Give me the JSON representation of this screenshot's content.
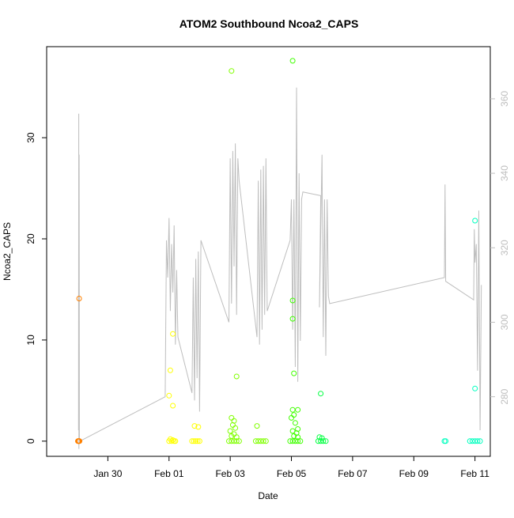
{
  "chart_data": {
    "type": "scatter",
    "title": "ATOM2 Southbound Ncoa2_CAPS",
    "xlabel": "Date",
    "ylabel": "Ncoa2_CAPS",
    "right_axis_label": "",
    "grid": false,
    "legend": "none",
    "xlim": [
      "2018-01-28T00:00",
      "2018-02-11T12:00"
    ],
    "ylim": [
      -1.5,
      39.0
    ],
    "y2lim": [
      264.0,
      374.0
    ],
    "x_ticks": [
      {
        "label": "Jan 30",
        "date": "2018-01-30"
      },
      {
        "label": "Feb 01",
        "date": "2018-02-01"
      },
      {
        "label": "Feb 03",
        "date": "2018-02-03"
      },
      {
        "label": "Feb 05",
        "date": "2018-02-05"
      },
      {
        "label": "Feb 07",
        "date": "2018-02-07"
      },
      {
        "label": "Feb 09",
        "date": "2018-02-09"
      },
      {
        "label": "Feb 11",
        "date": "2018-02-11"
      }
    ],
    "y_ticks": [
      0,
      10,
      20,
      30
    ],
    "y2_ticks": [
      280,
      300,
      320,
      340,
      360
    ],
    "colors": {
      "line": "#bebebe",
      "right_axis": "#bebebe",
      "axis": "#000000",
      "point_scale": [
        "#ff8000",
        "#ffff00",
        "#80ff00",
        "#00ff40",
        "#00ffbf"
      ]
    },
    "line_series": [
      [
        "2018-01-29T01:00",
        271
      ],
      [
        "2018-01-29T01:10",
        356
      ],
      [
        "2018-01-29T01:20",
        266
      ],
      [
        "2018-01-29T01:30",
        345
      ],
      [
        "2018-01-29T01:40",
        268
      ],
      [
        "2018-01-31T21:00",
        280
      ],
      [
        "2018-01-31T22:00",
        322
      ],
      [
        "2018-01-31T23:00",
        312
      ],
      [
        "2018-02-01T00:00",
        328
      ],
      [
        "2018-02-01T01:00",
        303
      ],
      [
        "2018-02-01T02:00",
        321
      ],
      [
        "2018-02-01T03:00",
        308
      ],
      [
        "2018-02-01T04:00",
        326
      ],
      [
        "2018-02-01T05:00",
        294
      ],
      [
        "2018-02-01T06:00",
        314
      ],
      [
        "2018-02-01T07:00",
        296
      ],
      [
        "2018-02-01T18:00",
        281
      ],
      [
        "2018-02-01T19:00",
        312
      ],
      [
        "2018-02-01T20:00",
        279
      ],
      [
        "2018-02-01T21:00",
        317
      ],
      [
        "2018-02-01T22:00",
        285
      ],
      [
        "2018-02-01T23:00",
        319
      ],
      [
        "2018-02-02T00:00",
        276
      ],
      [
        "2018-02-02T01:00",
        322
      ],
      [
        "2018-02-02T02:00",
        321
      ],
      [
        "2018-02-02T23:00",
        300
      ],
      [
        "2018-02-03T00:00",
        344
      ],
      [
        "2018-02-03T01:00",
        305
      ],
      [
        "2018-02-03T02:00",
        346
      ],
      [
        "2018-02-03T03:00",
        315
      ],
      [
        "2018-02-03T04:00",
        348
      ],
      [
        "2018-02-03T05:00",
        302
      ],
      [
        "2018-02-03T06:00",
        344
      ],
      [
        "2018-02-03T07:00",
        338
      ],
      [
        "2018-02-03T21:00",
        296
      ],
      [
        "2018-02-03T22:00",
        338
      ],
      [
        "2018-02-03T23:00",
        294
      ],
      [
        "2018-02-04T00:00",
        341
      ],
      [
        "2018-02-04T01:00",
        298
      ],
      [
        "2018-02-04T02:00",
        342
      ],
      [
        "2018-02-04T03:00",
        302
      ],
      [
        "2018-02-04T04:00",
        344
      ],
      [
        "2018-02-04T05:00",
        303
      ],
      [
        "2018-02-04T23:00",
        322
      ],
      [
        "2018-02-05T00:00",
        333
      ],
      [
        "2018-02-05T01:00",
        298
      ],
      [
        "2018-02-05T02:00",
        333
      ],
      [
        "2018-02-05T03:00",
        288
      ],
      [
        "2018-02-05T04:00",
        363
      ],
      [
        "2018-02-05T05:00",
        284
      ],
      [
        "2018-02-05T06:00",
        340
      ],
      [
        "2018-02-05T07:00",
        295
      ],
      [
        "2018-02-05T08:00",
        333
      ],
      [
        "2018-02-05T09:00",
        335
      ],
      [
        "2018-02-05T23:00",
        334
      ],
      [
        "2018-02-05T22:00",
        304
      ],
      [
        "2018-02-06T00:00",
        345
      ],
      [
        "2018-02-06T01:00",
        296
      ],
      [
        "2018-02-06T02:00",
        333
      ],
      [
        "2018-02-06T03:00",
        291
      ],
      [
        "2018-02-06T04:00",
        333
      ],
      [
        "2018-02-06T05:00",
        307
      ],
      [
        "2018-02-06T06:00",
        305
      ],
      [
        "2018-02-10T00:00",
        312
      ],
      [
        "2018-02-10T00:30",
        337
      ],
      [
        "2018-02-10T01:00",
        311
      ],
      [
        "2018-02-10T23:00",
        306
      ],
      [
        "2018-02-10T23:30",
        325
      ],
      [
        "2018-02-11T00:00",
        316
      ],
      [
        "2018-02-11T01:00",
        321
      ],
      [
        "2018-02-11T02:00",
        287
      ],
      [
        "2018-02-11T03:00",
        330
      ],
      [
        "2018-02-11T04:00",
        271
      ],
      [
        "2018-02-11T05:00",
        310
      ]
    ],
    "points": [
      {
        "x": "2018-01-29T00:30",
        "y": 0,
        "color": "#ff8000"
      },
      {
        "x": "2018-01-29T00:50",
        "y": 0,
        "color": "#ff8000"
      },
      {
        "x": "2018-01-29T01:10",
        "y": 0,
        "color": "#ff8000"
      },
      {
        "x": "2018-01-29T01:30",
        "y": 0,
        "color": "#ff8000"
      },
      {
        "x": "2018-01-29T01:50",
        "y": 0,
        "color": "#ff8000"
      },
      {
        "x": "2018-01-29T01:30",
        "y": 14.1,
        "color": "#ff8000"
      },
      {
        "x": "2018-02-01T00:00",
        "y": 4.5,
        "color": "#ffff00"
      },
      {
        "x": "2018-02-01T01:00",
        "y": 7.0,
        "color": "#ffff00"
      },
      {
        "x": "2018-02-01T03:00",
        "y": 3.5,
        "color": "#ffff00"
      },
      {
        "x": "2018-02-01T03:00",
        "y": 10.6,
        "color": "#ffff00"
      },
      {
        "x": "2018-02-01T00:00",
        "y": 0,
        "color": "#ffff00"
      },
      {
        "x": "2018-02-01T01:00",
        "y": 0.2,
        "color": "#ffff00"
      },
      {
        "x": "2018-02-01T02:00",
        "y": 0,
        "color": "#ffff00"
      },
      {
        "x": "2018-02-01T03:00",
        "y": 0.1,
        "color": "#ffff00"
      },
      {
        "x": "2018-02-01T04:00",
        "y": 0,
        "color": "#ffff00"
      },
      {
        "x": "2018-02-01T05:00",
        "y": 0,
        "color": "#ffff00"
      },
      {
        "x": "2018-02-01T20:00",
        "y": 1.5,
        "color": "#ffff00"
      },
      {
        "x": "2018-02-01T23:00",
        "y": 1.4,
        "color": "#ffff00"
      },
      {
        "x": "2018-02-01T18:00",
        "y": 0,
        "color": "#ffff00"
      },
      {
        "x": "2018-02-01T19:30",
        "y": 0,
        "color": "#ffff00"
      },
      {
        "x": "2018-02-01T21:00",
        "y": 0,
        "color": "#ffff00"
      },
      {
        "x": "2018-02-01T22:30",
        "y": 0,
        "color": "#ffff00"
      },
      {
        "x": "2018-02-02T00:00",
        "y": 0,
        "color": "#ffff00"
      },
      {
        "x": "2018-02-03T01:00",
        "y": 36.6,
        "color": "#80ff00"
      },
      {
        "x": "2018-02-03T05:00",
        "y": 6.4,
        "color": "#80ff00"
      },
      {
        "x": "2018-02-03T01:00",
        "y": 2.3,
        "color": "#80ff00"
      },
      {
        "x": "2018-02-03T03:00",
        "y": 2.0,
        "color": "#80ff00"
      },
      {
        "x": "2018-02-03T02:00",
        "y": 1.6,
        "color": "#80ff00"
      },
      {
        "x": "2018-02-03T04:00",
        "y": 1.3,
        "color": "#80ff00"
      },
      {
        "x": "2018-02-03T00:00",
        "y": 1.0,
        "color": "#80ff00"
      },
      {
        "x": "2018-02-03T03:00",
        "y": 0.7,
        "color": "#80ff00"
      },
      {
        "x": "2018-02-03T01:00",
        "y": 0.5,
        "color": "#80ff00"
      },
      {
        "x": "2018-02-03T05:00",
        "y": 0.4,
        "color": "#80ff00"
      },
      {
        "x": "2018-02-02T23:00",
        "y": 0,
        "color": "#80ff00"
      },
      {
        "x": "2018-02-03T01:00",
        "y": 0,
        "color": "#80ff00"
      },
      {
        "x": "2018-02-03T03:00",
        "y": 0,
        "color": "#80ff00"
      },
      {
        "x": "2018-02-03T05:00",
        "y": 0,
        "color": "#80ff00"
      },
      {
        "x": "2018-02-03T07:00",
        "y": 0,
        "color": "#80ff00"
      },
      {
        "x": "2018-02-03T21:00",
        "y": 1.5,
        "color": "#80ff00"
      },
      {
        "x": "2018-02-03T20:00",
        "y": 0,
        "color": "#80ff00"
      },
      {
        "x": "2018-02-03T22:00",
        "y": 0,
        "color": "#80ff00"
      },
      {
        "x": "2018-02-04T00:00",
        "y": 0,
        "color": "#80ff00"
      },
      {
        "x": "2018-02-04T02:00",
        "y": 0,
        "color": "#80ff00"
      },
      {
        "x": "2018-02-04T04:00",
        "y": 0,
        "color": "#80ff00"
      },
      {
        "x": "2018-02-05T01:00",
        "y": 37.6,
        "color": "#40ff00"
      },
      {
        "x": "2018-02-05T01:00",
        "y": 13.9,
        "color": "#40ff00"
      },
      {
        "x": "2018-02-05T01:00",
        "y": 12.1,
        "color": "#40ff00"
      },
      {
        "x": "2018-02-05T02:00",
        "y": 6.7,
        "color": "#40ff00"
      },
      {
        "x": "2018-02-05T01:00",
        "y": 3.1,
        "color": "#40ff00"
      },
      {
        "x": "2018-02-05T05:00",
        "y": 3.1,
        "color": "#40ff00"
      },
      {
        "x": "2018-02-05T02:00",
        "y": 2.6,
        "color": "#40ff00"
      },
      {
        "x": "2018-02-05T00:00",
        "y": 2.3,
        "color": "#40ff00"
      },
      {
        "x": "2018-02-05T03:00",
        "y": 1.8,
        "color": "#40ff00"
      },
      {
        "x": "2018-02-05T05:00",
        "y": 1.2,
        "color": "#40ff00"
      },
      {
        "x": "2018-02-05T01:00",
        "y": 1.0,
        "color": "#40ff00"
      },
      {
        "x": "2018-02-05T04:00",
        "y": 0.8,
        "color": "#40ff00"
      },
      {
        "x": "2018-02-05T02:00",
        "y": 0.5,
        "color": "#40ff00"
      },
      {
        "x": "2018-02-05T05:00",
        "y": 0.4,
        "color": "#40ff00"
      },
      {
        "x": "2018-02-04T23:00",
        "y": 0,
        "color": "#40ff00"
      },
      {
        "x": "2018-02-05T01:00",
        "y": 0,
        "color": "#40ff00"
      },
      {
        "x": "2018-02-05T03:00",
        "y": 0,
        "color": "#40ff00"
      },
      {
        "x": "2018-02-05T05:00",
        "y": 0,
        "color": "#40ff00"
      },
      {
        "x": "2018-02-05T07:00",
        "y": 0,
        "color": "#40ff00"
      },
      {
        "x": "2018-02-05T23:00",
        "y": 4.7,
        "color": "#00ff40"
      },
      {
        "x": "2018-02-05T22:00",
        "y": 0.4,
        "color": "#00ff40"
      },
      {
        "x": "2018-02-06T00:00",
        "y": 0.3,
        "color": "#00ff40"
      },
      {
        "x": "2018-02-05T21:00",
        "y": 0,
        "color": "#00ff40"
      },
      {
        "x": "2018-02-05T23:00",
        "y": 0,
        "color": "#00ff40"
      },
      {
        "x": "2018-02-06T01:00",
        "y": 0,
        "color": "#00ff40"
      },
      {
        "x": "2018-02-06T03:00",
        "y": 0,
        "color": "#00ff40"
      },
      {
        "x": "2018-02-10T00:00",
        "y": 0,
        "color": "#00ffbf"
      },
      {
        "x": "2018-02-10T01:00",
        "y": 0,
        "color": "#00ffbf"
      },
      {
        "x": "2018-02-11T00:00",
        "y": 21.8,
        "color": "#00ffbf"
      },
      {
        "x": "2018-02-11T00:00",
        "y": 5.2,
        "color": "#00ffbf"
      },
      {
        "x": "2018-02-10T20:00",
        "y": 0,
        "color": "#00ffbf"
      },
      {
        "x": "2018-02-10T22:00",
        "y": 0,
        "color": "#00ffbf"
      },
      {
        "x": "2018-02-11T00:00",
        "y": 0,
        "color": "#00ffbf"
      },
      {
        "x": "2018-02-11T02:00",
        "y": 0,
        "color": "#00ffbf"
      },
      {
        "x": "2018-02-11T04:00",
        "y": 0,
        "color": "#00ffbf"
      }
    ]
  }
}
